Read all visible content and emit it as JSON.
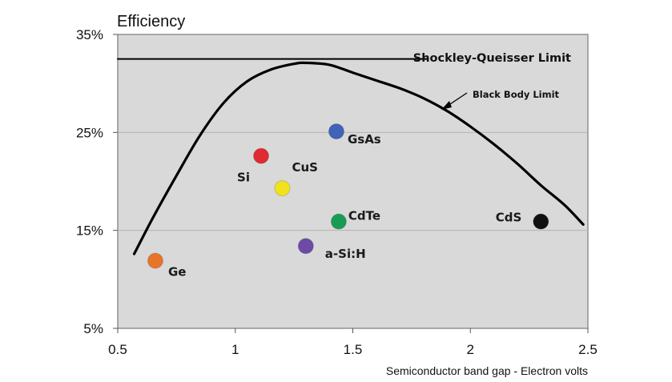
{
  "chart_data": {
    "type": "scatter",
    "title": "",
    "ylabel": "Efficiency",
    "xlabel": "Semiconductor band gap - Electron volts",
    "xlim": [
      0.5,
      2.5
    ],
    "ylim": [
      5,
      35
    ],
    "x_ticks": [
      0.5,
      1,
      1.5,
      2,
      2.5
    ],
    "x_tick_labels": [
      "0.5",
      "1",
      "1.5",
      "2",
      "2.5"
    ],
    "y_ticks": [
      5,
      15,
      25,
      35
    ],
    "y_tick_labels": [
      "5%",
      "15%",
      "25%",
      "35%"
    ],
    "grid": "horizontal",
    "background": "#d9d9d9",
    "points": [
      {
        "label": "Ge",
        "x": 0.66,
        "y": 11.9,
        "color": "#e8742a"
      },
      {
        "label": "Si",
        "x": 1.11,
        "y": 22.6,
        "color": "#e02b32"
      },
      {
        "label": "CuS",
        "x": 1.2,
        "y": 19.3,
        "color": "#f2e21e"
      },
      {
        "label": "GsAs",
        "x": 1.43,
        "y": 25.1,
        "color": "#3f63b6"
      },
      {
        "label": "CdTe",
        "x": 1.44,
        "y": 15.9,
        "color": "#1a9b55"
      },
      {
        "label": "a-Si:H",
        "x": 1.3,
        "y": 13.4,
        "color": "#6e4aa8"
      },
      {
        "label": "CdS",
        "x": 2.3,
        "y": 15.9,
        "color": "#111111"
      }
    ],
    "series": [
      {
        "name": "Black Body Limit",
        "x": [
          0.57,
          0.65,
          0.75,
          0.85,
          0.95,
          1.05,
          1.15,
          1.25,
          1.3,
          1.4,
          1.5,
          1.6,
          1.7,
          1.8,
          1.9,
          2.0,
          2.1,
          2.2,
          2.3,
          2.4,
          2.48
        ],
        "y": [
          12.6,
          16.3,
          20.6,
          24.7,
          28.0,
          30.2,
          31.4,
          32.0,
          32.1,
          31.9,
          31.1,
          30.3,
          29.5,
          28.5,
          27.2,
          25.6,
          23.8,
          21.8,
          19.6,
          17.6,
          15.6
        ]
      },
      {
        "name": "Shockley-Queisser Limit",
        "x": [
          0.5,
          1.82
        ],
        "y": [
          32.5,
          32.5
        ]
      }
    ],
    "annotations": {
      "shockley": "Shockley-Queisser Limit",
      "blackbody": "Black Body Limit"
    }
  }
}
